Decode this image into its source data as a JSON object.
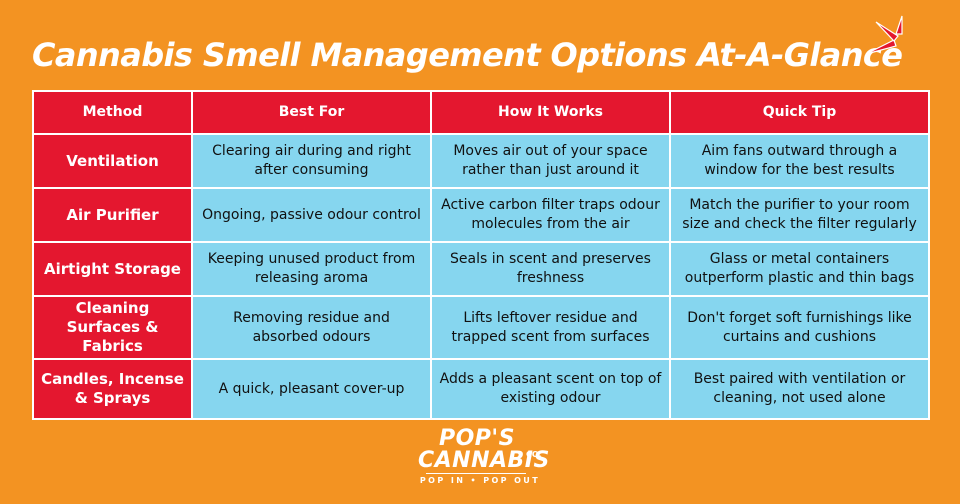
{
  "title": "Cannabis Smell Management Options At-A-Glance",
  "colors": {
    "background": "#F39322",
    "header_red": "#E4172F",
    "cell_blue": "#86D6EF",
    "text_white": "#FFFFFF"
  },
  "table": {
    "headers": [
      "Method",
      "Best For",
      "How It Works",
      "Quick Tip"
    ],
    "rows": [
      {
        "method": "Ventilation",
        "best_for": "Clearing air during and right after consuming",
        "how_it_works": "Moves air out of your space rather than just around it",
        "quick_tip": "Aim fans outward through a window for the best results"
      },
      {
        "method": "Air Purifier",
        "best_for": "Ongoing, passive odour control",
        "how_it_works": "Active carbon filter traps odour molecules from the air",
        "quick_tip": "Match the purifier to your room size and check the filter regularly"
      },
      {
        "method": "Airtight Storage",
        "best_for": "Keeping unused product from releasing aroma",
        "how_it_works": "Seals in scent and preserves freshness",
        "quick_tip": "Glass or metal containers outperform plastic and thin bags"
      },
      {
        "method": "Cleaning Surfaces & Fabrics",
        "best_for": "Removing residue and absorbed odours",
        "how_it_works": "Lifts leftover residue and trapped scent from surfaces",
        "quick_tip": "Don't forget soft furnishings like curtains and cushions"
      },
      {
        "method": "Candles, Incense & Sprays",
        "best_for": "A quick, pleasant cover-up",
        "how_it_works": "Adds a pleasant scent on top of existing odour",
        "quick_tip": "Best paired with ventilation or cleaning, not used alone"
      }
    ]
  },
  "logo": {
    "line1": "POP'S",
    "line2": "CANNABIS",
    "suffix": "CO.",
    "tagline": "POP IN • POP OUT"
  },
  "decoration": {
    "icon": "burst-lines-icon"
  }
}
